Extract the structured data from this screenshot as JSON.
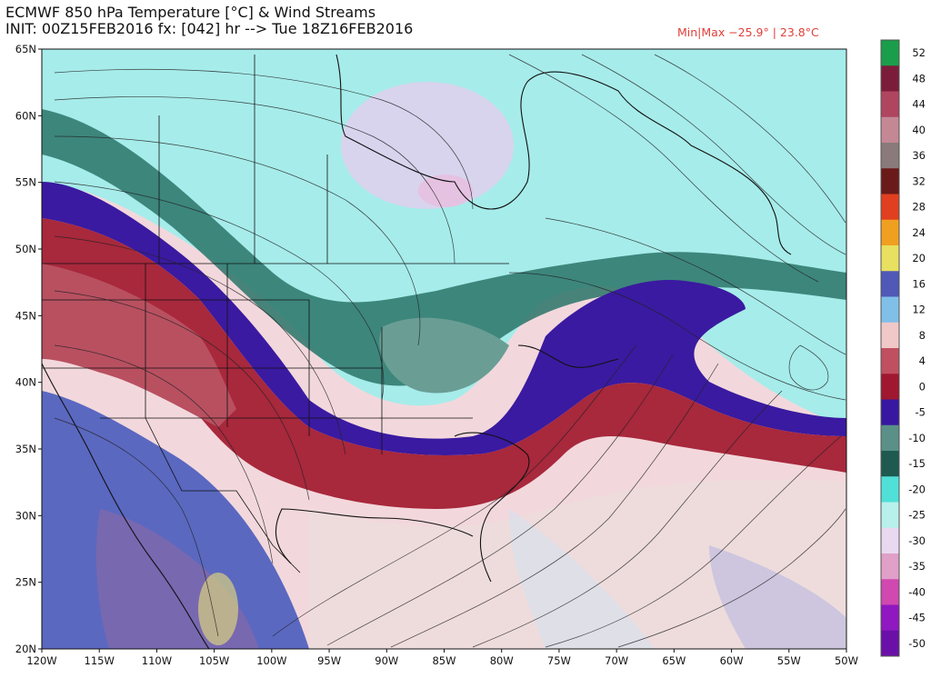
{
  "header": {
    "title_line1": "ECMWF 850 hPa Temperature [°C] & Wind Streams",
    "title_line2": "INIT: 00Z15FEB2016 fx: [042] hr --> Tue 18Z16FEB2016",
    "minmax": "Min|Max −25.9° | 23.8°C",
    "minmax_color": "#e0403a"
  },
  "map": {
    "projection": "equirectangular",
    "lon_range": [
      -120,
      -50
    ],
    "lat_range": [
      20,
      65
    ],
    "lat_labels": [
      "65N",
      "60N",
      "55N",
      "50N",
      "45N",
      "40N",
      "35N",
      "30N",
      "25N",
      "20N"
    ],
    "lon_labels": [
      "120W",
      "115W",
      "110W",
      "105W",
      "100W",
      "95W",
      "90W",
      "85W",
      "80W",
      "75W",
      "70W",
      "65W",
      "60W",
      "55W",
      "50W"
    ]
  },
  "colorbar": {
    "labels": [
      "52",
      "48",
      "44",
      "40",
      "36",
      "32",
      "28",
      "24",
      "20",
      "16",
      "12",
      "8",
      "4",
      "0",
      "-5",
      "-10",
      "-15",
      "-20",
      "-25",
      "-30",
      "-35",
      "-40",
      "-45",
      "-50"
    ],
    "colors": [
      "#1b9e4b",
      "#7b1d3a",
      "#b04560",
      "#c48895",
      "#8a7a7a",
      "#6b1a1a",
      "#e04020",
      "#f0a020",
      "#e8e060",
      "#5058b8",
      "#80c0e8",
      "#f0c8c8",
      "#c05060",
      "#a01830",
      "#3818a0",
      "#5a9088",
      "#1e5a50",
      "#50e0d8",
      "#b8f0ec",
      "#e8d8f0",
      "#e0a0c8",
      "#d048b0",
      "#9018c0",
      "#6a10a8"
    ]
  }
}
